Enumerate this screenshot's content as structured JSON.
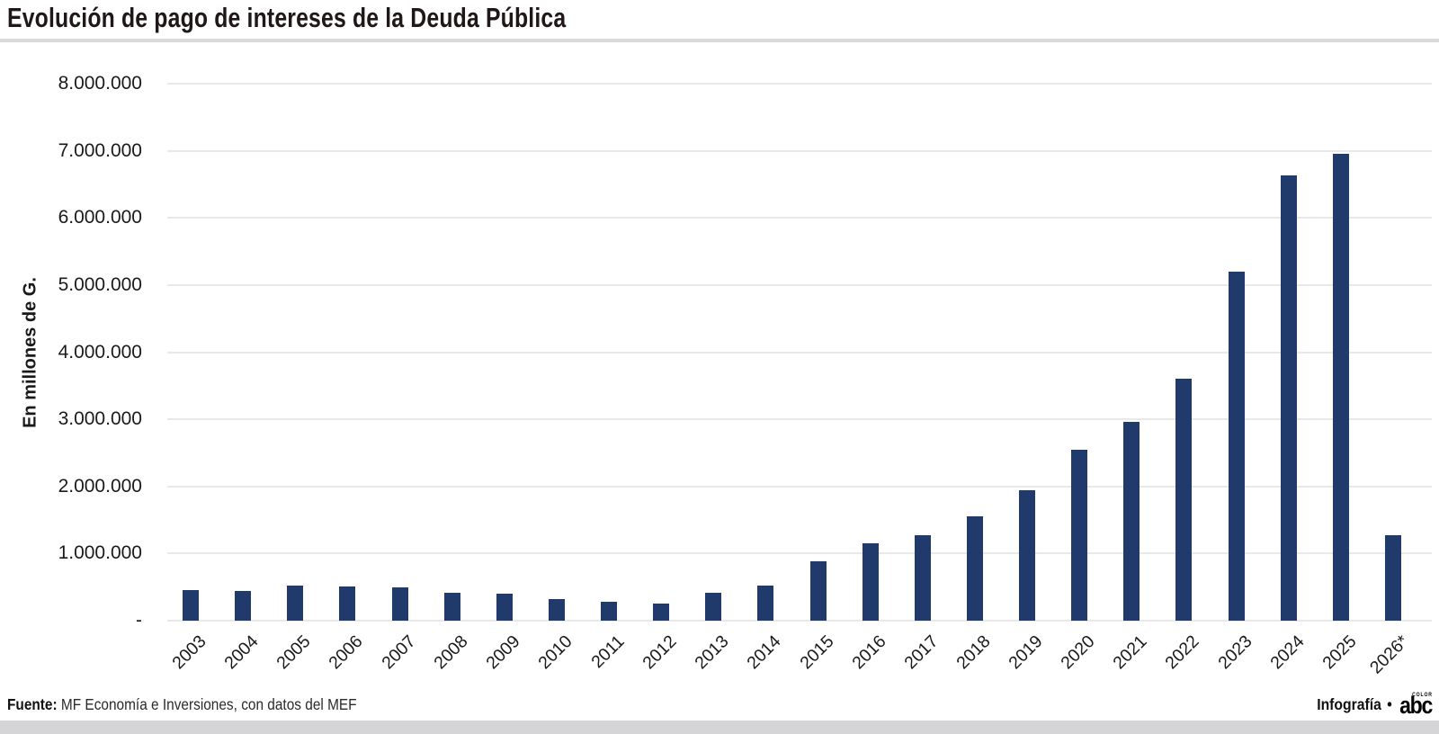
{
  "header": {
    "title": "Evolución de pago de intereses de la Deuda Pública"
  },
  "chart_data": {
    "type": "bar",
    "title": "Evolución de pago de intereses de la Deuda Pública",
    "xlabel": "",
    "ylabel": "En millones de G.",
    "unit": "millones de guaraníes",
    "bar_color": "#1f3a6b",
    "grid": true,
    "legend": "none",
    "ylim": [
      0,
      8000000
    ],
    "ytick_interval": 1000000,
    "ytick_labels": [
      "-",
      "1.000.000",
      "2.000.000",
      "3.000.000",
      "4.000.000",
      "5.000.000",
      "6.000.000",
      "7.000.000",
      "8.000.000"
    ],
    "categories": [
      "2003",
      "2004",
      "2005",
      "2006",
      "2007",
      "2008",
      "2009",
      "2010",
      "2011",
      "2012",
      "2013",
      "2014",
      "2015",
      "2016",
      "2017",
      "2018",
      "2019",
      "2020",
      "2021",
      "2022",
      "2023",
      "2024",
      "2025",
      "2026*"
    ],
    "values": [
      460000,
      440000,
      525000,
      505000,
      490000,
      420000,
      405000,
      320000,
      280000,
      250000,
      415000,
      520000,
      880000,
      1150000,
      1270000,
      1550000,
      1940000,
      2540000,
      2960000,
      3600000,
      5200000,
      6630000,
      6960000,
      1270000
    ]
  },
  "footer": {
    "source_label": "Fuente:",
    "source_text": "MF Economía e Inversiones, con datos del MEF",
    "credit_text": "Infografía",
    "credit_separator": "•",
    "logo_text": "abc",
    "logo_top_text": "COLOR"
  }
}
